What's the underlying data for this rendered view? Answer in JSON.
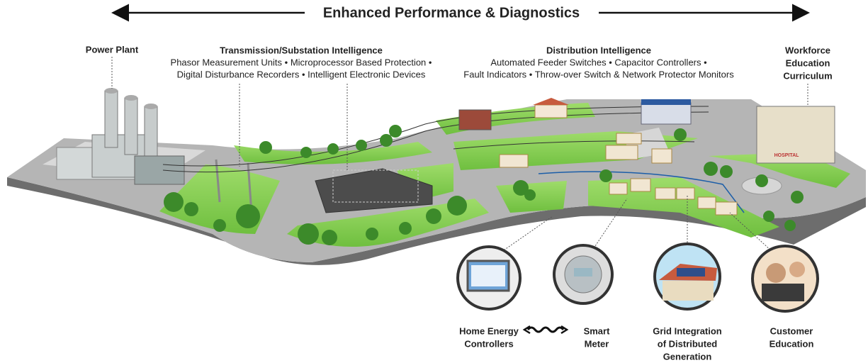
{
  "header": {
    "title": "Enhanced Performance & Diagnostics"
  },
  "sections": [
    {
      "title": [
        "Power Plant"
      ]
    },
    {
      "title": [
        "Transmission/Substation Intelligence"
      ],
      "details": [
        "Phasor Measurement Units • Microprocessor Based Protection •",
        "Digital Disturbance Recorders • Intelligent Electronic Devices"
      ]
    },
    {
      "title": [
        "Distribution Intelligence"
      ],
      "details": [
        "Automated Feeder Switches • Capacitor Controllers •",
        "Fault Indicators • Throw-over Switch & Network Protector Monitors"
      ]
    },
    {
      "title": [
        "Workforce",
        "Education",
        "Curriculum"
      ]
    }
  ],
  "building_sign": "HOSPITAL",
  "callouts": [
    {
      "lines": [
        "Home Energy",
        "Controllers"
      ]
    },
    {
      "lines": [
        "Smart",
        "Meter"
      ]
    },
    {
      "lines": [
        "Grid Integration",
        "of Distributed",
        "Generation"
      ]
    },
    {
      "lines": [
        "Customer",
        "Education"
      ]
    }
  ]
}
